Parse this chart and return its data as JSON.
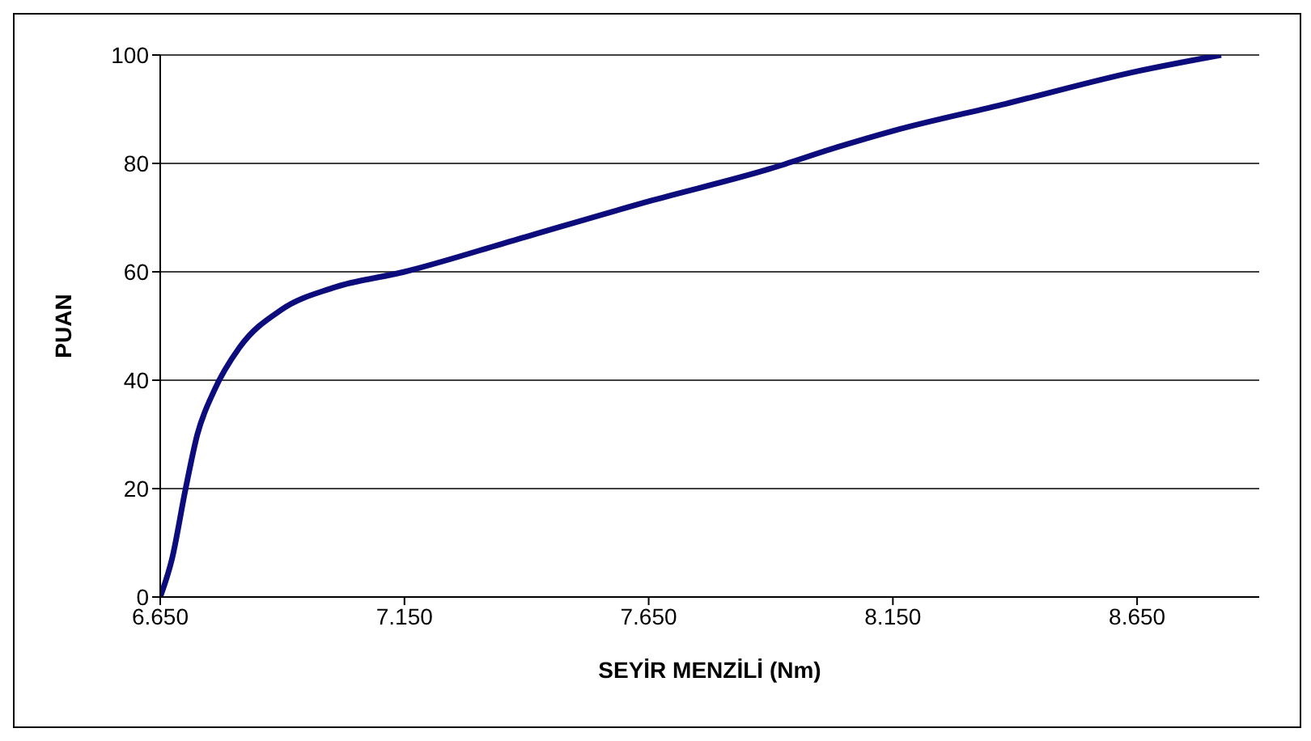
{
  "chart_data": {
    "type": "line",
    "xlabel": "SEYİR MENZİLİ (Nm)",
    "ylabel": "PUAN",
    "x": [
      6650,
      6674,
      6702,
      6726,
      6760,
      6812,
      6898,
      7002,
      7150,
      7381,
      7650,
      7898,
      8036,
      8150,
      8381,
      8650,
      8822
    ],
    "series": [
      {
        "color": "#0c0c7c",
        "values": [
          0,
          7,
          20,
          30,
          38,
          46,
          53,
          57,
          60,
          66,
          73,
          79,
          83,
          86,
          91,
          97,
          100
        ]
      }
    ],
    "xlim": [
      6650,
      8900
    ],
    "xticks": [
      {
        "value": 6650,
        "label": "6.650"
      },
      {
        "value": 7150,
        "label": "7.150"
      },
      {
        "value": 7650,
        "label": "7.650"
      },
      {
        "value": 8150,
        "label": "8.150"
      },
      {
        "value": 8650,
        "label": "8.650"
      }
    ],
    "ylim": [
      0,
      100
    ],
    "yticks": [
      0,
      20,
      40,
      60,
      80,
      100
    ],
    "grid": "y",
    "marker": "none",
    "line_style": "solid"
  }
}
